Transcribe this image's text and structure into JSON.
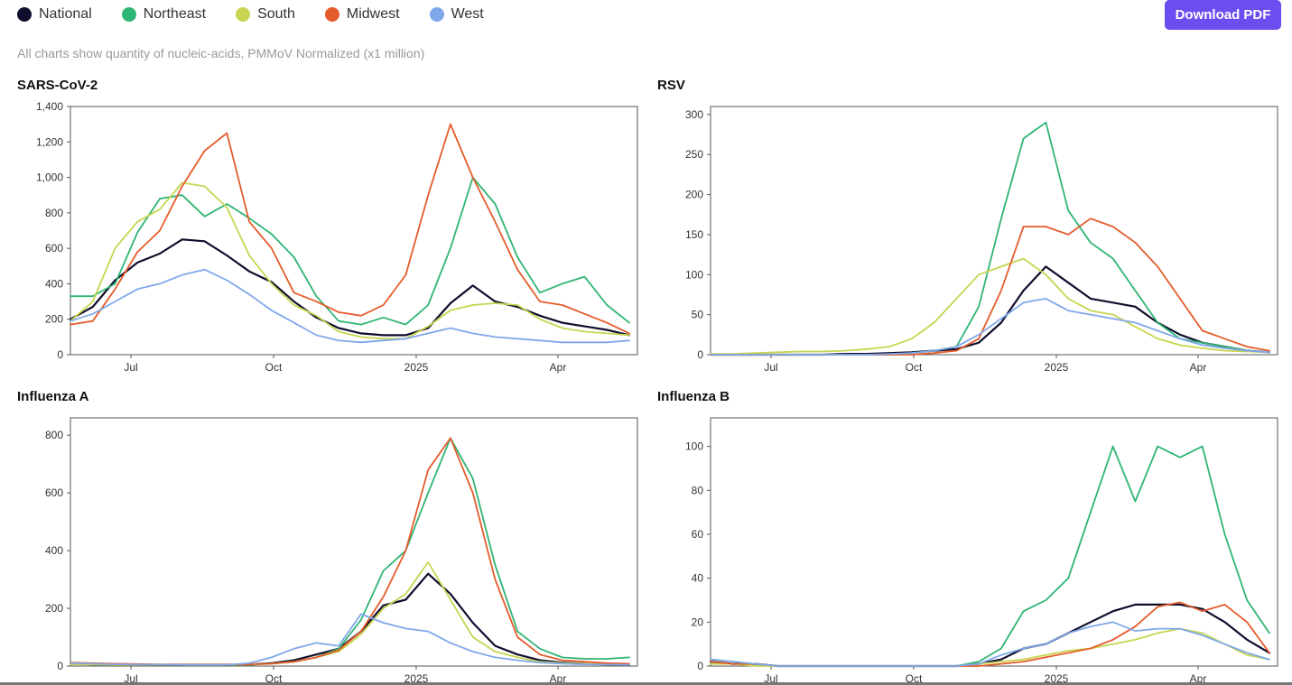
{
  "legend": [
    {
      "label": "National",
      "color": "#0f0f2d"
    },
    {
      "label": "Northeast",
      "color": "#2fb573"
    },
    {
      "label": "South",
      "color": "#c8d550"
    },
    {
      "label": "Midwest",
      "color": "#e45c2b"
    },
    {
      "label": "West",
      "color": "#7fa8ea"
    }
  ],
  "download_label": "Download PDF",
  "subtitle": "All charts show quantity of nucleic-acids, PMMoV Normalized (x1 million)",
  "x_ticks": [
    "Jul",
    "Oct",
    "2025",
    "Apr"
  ],
  "chart_data": [
    {
      "type": "line",
      "title": "SARS-CoV-2",
      "ylim": [
        0,
        1400
      ],
      "y_ticks": [
        0,
        200,
        400,
        600,
        800,
        1000,
        1200,
        1400
      ],
      "y_tick_labels": [
        "0",
        "200",
        "400",
        "600",
        "800",
        "1,000",
        "1,200",
        "1,400"
      ],
      "x_weeks": [
        0,
        2,
        4,
        6,
        8,
        10,
        12,
        14,
        16,
        18,
        20,
        22,
        24,
        26,
        28,
        30,
        32,
        34,
        36,
        38,
        40,
        42,
        44,
        46,
        48,
        50
      ],
      "series": [
        {
          "name": "National",
          "values": [
            200,
            270,
            420,
            520,
            570,
            650,
            640,
            560,
            470,
            410,
            300,
            210,
            150,
            120,
            110,
            110,
            150,
            290,
            390,
            300,
            270,
            220,
            180,
            160,
            140,
            110
          ]
        },
        {
          "name": "Northeast",
          "values": [
            330,
            330,
            400,
            690,
            880,
            900,
            780,
            850,
            770,
            680,
            550,
            330,
            190,
            170,
            210,
            170,
            280,
            600,
            1000,
            850,
            550,
            350,
            400,
            440,
            280,
            180
          ]
        },
        {
          "name": "South",
          "values": [
            190,
            300,
            600,
            750,
            820,
            970,
            950,
            830,
            560,
            400,
            280,
            220,
            130,
            100,
            90,
            90,
            160,
            250,
            280,
            290,
            280,
            200,
            150,
            130,
            120,
            110
          ]
        },
        {
          "name": "Midwest",
          "values": [
            170,
            190,
            370,
            580,
            700,
            950,
            1150,
            1250,
            750,
            600,
            350,
            300,
            240,
            220,
            280,
            450,
            900,
            1300,
            1000,
            750,
            480,
            300,
            280,
            230,
            180,
            120
          ]
        },
        {
          "name": "West",
          "values": [
            190,
            230,
            300,
            370,
            400,
            450,
            480,
            420,
            340,
            250,
            180,
            110,
            80,
            70,
            80,
            90,
            120,
            150,
            120,
            100,
            90,
            80,
            70,
            70,
            70,
            80
          ]
        }
      ]
    },
    {
      "type": "line",
      "title": "RSV",
      "ylim": [
        0,
        310
      ],
      "y_ticks": [
        0,
        50,
        100,
        150,
        200,
        250,
        300
      ],
      "y_tick_labels": [
        "0",
        "50",
        "100",
        "150",
        "200",
        "250",
        "300"
      ],
      "x_weeks": [
        0,
        2,
        4,
        6,
        8,
        10,
        12,
        14,
        16,
        18,
        20,
        22,
        24,
        26,
        28,
        30,
        32,
        34,
        36,
        38,
        40,
        42,
        44,
        46,
        48,
        50
      ],
      "series": [
        {
          "name": "National",
          "values": [
            0,
            0,
            0,
            0,
            0,
            0,
            1,
            1,
            2,
            3,
            5,
            7,
            15,
            40,
            80,
            110,
            90,
            70,
            65,
            60,
            40,
            25,
            15,
            10,
            5,
            3
          ]
        },
        {
          "name": "Northeast",
          "values": [
            0,
            0,
            0,
            0,
            0,
            0,
            0,
            0,
            0,
            2,
            5,
            10,
            60,
            170,
            270,
            290,
            180,
            140,
            120,
            80,
            40,
            20,
            15,
            10,
            5,
            3
          ]
        },
        {
          "name": "South",
          "values": [
            1,
            1,
            2,
            3,
            4,
            4,
            5,
            7,
            10,
            20,
            40,
            70,
            100,
            110,
            120,
            100,
            70,
            55,
            50,
            35,
            20,
            12,
            8,
            5,
            4,
            3
          ]
        },
        {
          "name": "Midwest",
          "values": [
            0,
            0,
            0,
            0,
            0,
            0,
            0,
            0,
            0,
            0,
            2,
            5,
            20,
            80,
            160,
            160,
            150,
            170,
            160,
            140,
            110,
            70,
            30,
            20,
            10,
            5
          ]
        },
        {
          "name": "West",
          "values": [
            0,
            0,
            0,
            0,
            0,
            0,
            0,
            0,
            1,
            2,
            5,
            10,
            25,
            45,
            65,
            70,
            55,
            50,
            45,
            40,
            30,
            20,
            12,
            8,
            5,
            3
          ]
        }
      ]
    },
    {
      "type": "line",
      "title": "Influenza A",
      "ylim": [
        0,
        860
      ],
      "y_ticks": [
        0,
        200,
        400,
        600,
        800
      ],
      "y_tick_labels": [
        "0",
        "200",
        "400",
        "600",
        "800"
      ],
      "x_weeks": [
        0,
        2,
        4,
        6,
        8,
        10,
        12,
        14,
        16,
        18,
        20,
        22,
        24,
        26,
        28,
        30,
        32,
        34,
        36,
        38,
        40,
        42,
        44,
        46,
        48,
        50
      ],
      "series": [
        {
          "name": "National",
          "values": [
            8,
            6,
            5,
            5,
            4,
            4,
            4,
            4,
            5,
            10,
            20,
            40,
            60,
            120,
            210,
            230,
            320,
            250,
            150,
            70,
            40,
            20,
            12,
            8,
            6,
            5
          ]
        },
        {
          "name": "Northeast",
          "values": [
            10,
            8,
            6,
            5,
            5,
            4,
            4,
            4,
            5,
            8,
            15,
            30,
            60,
            160,
            330,
            400,
            600,
            790,
            650,
            350,
            120,
            60,
            30,
            25,
            25,
            30
          ]
        },
        {
          "name": "South",
          "values": [
            6,
            5,
            4,
            4,
            4,
            4,
            4,
            4,
            5,
            8,
            15,
            30,
            50,
            110,
            200,
            250,
            360,
            230,
            100,
            50,
            30,
            15,
            10,
            8,
            8,
            6
          ]
        },
        {
          "name": "Midwest",
          "values": [
            12,
            10,
            8,
            7,
            6,
            6,
            6,
            6,
            6,
            8,
            15,
            30,
            55,
            120,
            240,
            400,
            680,
            790,
            600,
            300,
            100,
            40,
            20,
            15,
            10,
            8
          ]
        },
        {
          "name": "West",
          "values": [
            10,
            8,
            6,
            5,
            5,
            4,
            4,
            4,
            10,
            30,
            60,
            80,
            70,
            180,
            150,
            130,
            120,
            80,
            50,
            30,
            20,
            12,
            8,
            6,
            5,
            4
          ]
        }
      ]
    },
    {
      "type": "line",
      "title": "Influenza B",
      "ylim": [
        0,
        113
      ],
      "y_ticks": [
        0,
        20,
        40,
        60,
        80,
        100
      ],
      "y_tick_labels": [
        "0",
        "20",
        "40",
        "60",
        "80",
        "100"
      ],
      "x_weeks": [
        0,
        2,
        4,
        6,
        8,
        10,
        12,
        14,
        16,
        18,
        20,
        22,
        24,
        26,
        28,
        30,
        32,
        34,
        36,
        38,
        40,
        42,
        44,
        46,
        48,
        50
      ],
      "series": [
        {
          "name": "National",
          "values": [
            2,
            1,
            1,
            0,
            0,
            0,
            0,
            0,
            0,
            0,
            0,
            0,
            1,
            3,
            8,
            10,
            15,
            20,
            25,
            28,
            28,
            28,
            26,
            20,
            12,
            6
          ]
        },
        {
          "name": "Northeast",
          "values": [
            3,
            2,
            1,
            0,
            0,
            0,
            0,
            0,
            0,
            0,
            0,
            0,
            2,
            8,
            25,
            30,
            40,
            70,
            100,
            75,
            100,
            95,
            100,
            60,
            30,
            15
          ]
        },
        {
          "name": "South",
          "values": [
            1,
            1,
            0,
            0,
            0,
            0,
            0,
            0,
            0,
            0,
            0,
            0,
            1,
            2,
            3,
            5,
            7,
            8,
            10,
            12,
            15,
            17,
            15,
            10,
            5,
            3
          ]
        },
        {
          "name": "Midwest",
          "values": [
            2,
            1,
            1,
            0,
            0,
            0,
            0,
            0,
            0,
            0,
            0,
            0,
            0,
            1,
            2,
            4,
            6,
            8,
            12,
            18,
            27,
            29,
            25,
            28,
            20,
            6
          ]
        },
        {
          "name": "West",
          "values": [
            3,
            2,
            1,
            0,
            0,
            0,
            0,
            0,
            0,
            0,
            0,
            0,
            1,
            5,
            8,
            10,
            15,
            18,
            20,
            16,
            17,
            17,
            14,
            10,
            6,
            3
          ]
        }
      ]
    }
  ]
}
